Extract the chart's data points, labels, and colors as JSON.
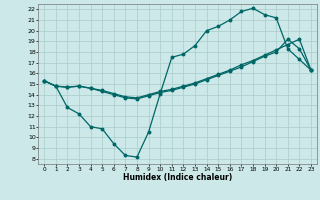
{
  "xlabel": "Humidex (Indice chaleur)",
  "xlim": [
    -0.5,
    23.5
  ],
  "ylim": [
    7.5,
    22.5
  ],
  "xtick_vals": [
    0,
    1,
    2,
    3,
    4,
    5,
    6,
    7,
    8,
    9,
    10,
    11,
    12,
    13,
    14,
    15,
    16,
    17,
    18,
    19,
    20,
    21,
    22,
    23
  ],
  "ytick_vals": [
    8,
    9,
    10,
    11,
    12,
    13,
    14,
    15,
    16,
    17,
    18,
    19,
    20,
    21,
    22
  ],
  "bg_color": "#cce8e8",
  "grid_color": "#aacccc",
  "line_color": "#006666",
  "line1_x": [
    0,
    1,
    2,
    3,
    4,
    5,
    6,
    7,
    8,
    9,
    10,
    11,
    12,
    13,
    14,
    15,
    16,
    17,
    18,
    19,
    20,
    21,
    22,
    23
  ],
  "line1_y": [
    15.3,
    14.8,
    14.7,
    14.8,
    14.6,
    14.4,
    14.1,
    13.8,
    13.7,
    14.0,
    14.3,
    14.5,
    14.8,
    15.1,
    15.5,
    15.9,
    16.3,
    16.8,
    17.2,
    17.7,
    18.2,
    18.7,
    19.2,
    16.3
  ],
  "line2_x": [
    0,
    1,
    2,
    3,
    4,
    5,
    6,
    7,
    8,
    9,
    10,
    11,
    12,
    13,
    14,
    15,
    16,
    17,
    18,
    19,
    20,
    21,
    22,
    23
  ],
  "line2_y": [
    15.3,
    14.8,
    12.8,
    12.2,
    11.0,
    10.8,
    9.4,
    8.3,
    8.15,
    10.5,
    14.1,
    17.5,
    17.8,
    18.6,
    20.0,
    20.4,
    21.0,
    21.8,
    22.1,
    21.5,
    21.2,
    18.3,
    17.3,
    16.3
  ],
  "line3_x": [
    0,
    1,
    2,
    3,
    4,
    5,
    6,
    7,
    8,
    9,
    10,
    11,
    12,
    13,
    14,
    15,
    16,
    17,
    18,
    19,
    20,
    21,
    22,
    23
  ],
  "line3_y": [
    15.3,
    14.8,
    14.7,
    14.8,
    14.6,
    14.3,
    14.0,
    13.7,
    13.6,
    13.9,
    14.2,
    14.4,
    14.7,
    15.0,
    15.4,
    15.8,
    16.2,
    16.6,
    17.1,
    17.6,
    18.0,
    19.2,
    18.3,
    16.3
  ]
}
